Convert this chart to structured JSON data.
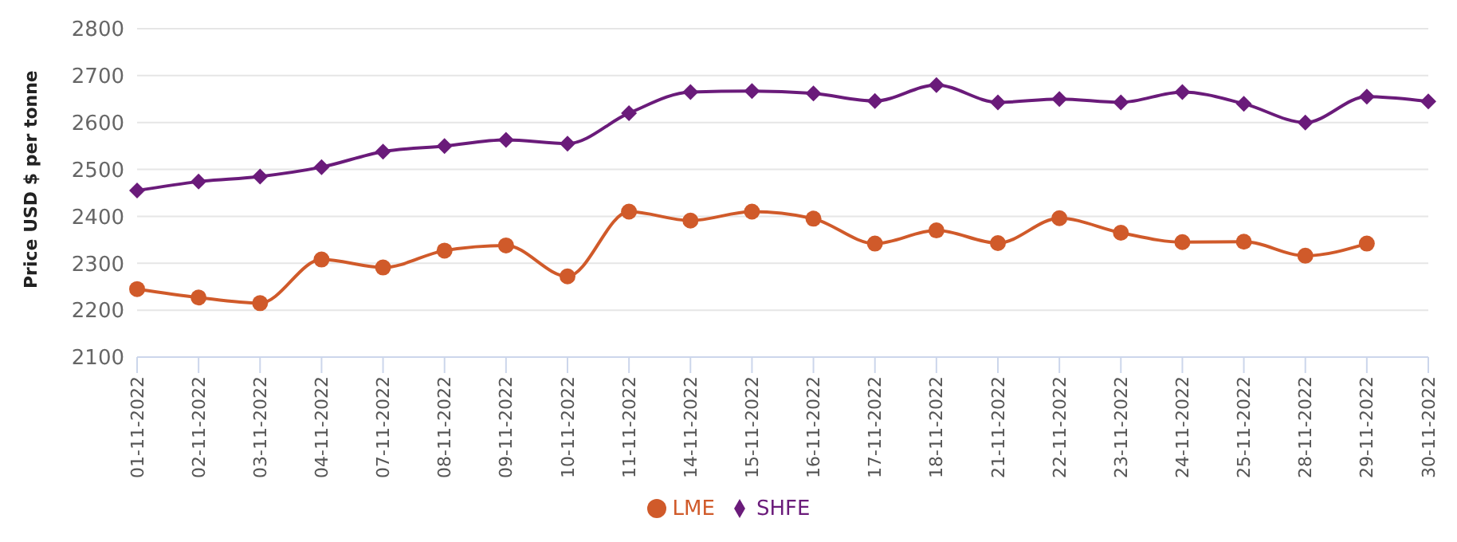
{
  "chart_data": {
    "type": "line",
    "ylabel": "Price USD $ per tonne",
    "categories": [
      "01-11-2022",
      "02-11-2022",
      "03-11-2022",
      "04-11-2022",
      "07-11-2022",
      "08-11-2022",
      "09-11-2022",
      "10-11-2022",
      "11-11-2022",
      "14-11-2022",
      "15-11-2022",
      "16-11-2022",
      "17-11-2022",
      "18-11-2022",
      "21-11-2022",
      "22-11-2022",
      "23-11-2022",
      "24-11-2022",
      "25-11-2022",
      "28-11-2022",
      "29-11-2022",
      "30-11-2022"
    ],
    "series": [
      {
        "name": "LME",
        "color": "#d05a2a",
        "marker": "circle",
        "values": [
          2245,
          2227,
          2215,
          2308,
          2291,
          2327,
          2338,
          2272,
          2410,
          2391,
          2410,
          2395,
          2342,
          2370,
          2343,
          2396,
          2365,
          2345,
          2346,
          2316,
          2342,
          null
        ]
      },
      {
        "name": "SHFE",
        "color": "#6a1b7a",
        "marker": "diamond",
        "values": [
          2455,
          2474,
          2485,
          2505,
          2538,
          2550,
          2563,
          2555,
          2620,
          2665,
          2667,
          2662,
          2646,
          2680,
          2643,
          2650,
          2643,
          2665,
          2640,
          2600,
          2655,
          2645
        ]
      }
    ],
    "ylim": [
      2100,
      2800
    ],
    "yticks": [
      2100,
      2200,
      2300,
      2400,
      2500,
      2600,
      2700,
      2800
    ],
    "grid": "y",
    "legend": "bottom",
    "line_style": "solid"
  }
}
